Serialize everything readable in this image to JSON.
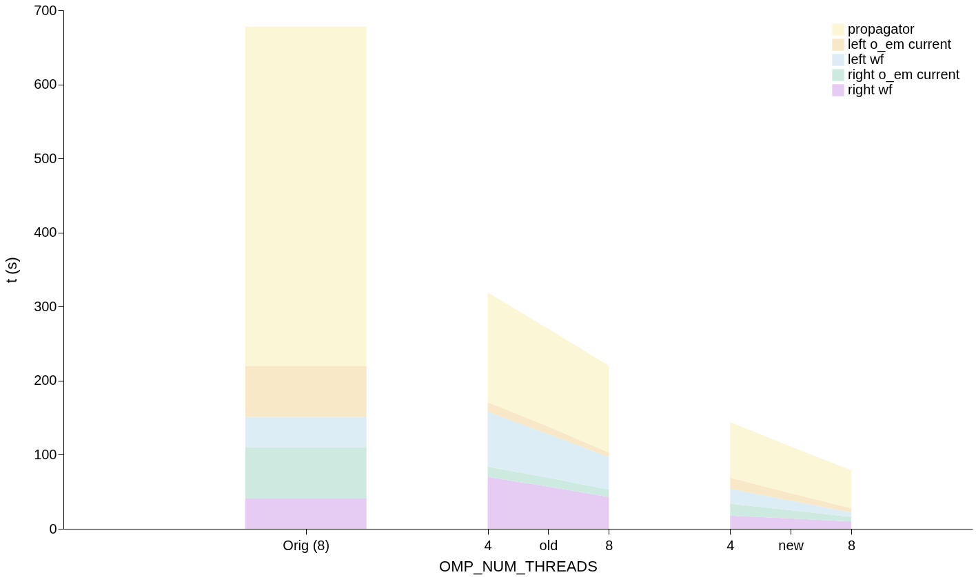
{
  "chart_data": {
    "type": "area",
    "stacked": true,
    "xlabel": "OMP_NUM_THREADS",
    "ylabel": "t (s)",
    "categories": [
      null,
      null,
      null,
      null,
      "Orig (8)",
      null,
      null,
      "4",
      "old",
      "8",
      null,
      "4",
      "new",
      "8",
      null,
      null
    ],
    "ylim": [
      0,
      700
    ],
    "yticks": [
      0,
      100,
      200,
      300,
      400,
      500,
      600,
      700
    ],
    "series": [
      {
        "name": "right wf",
        "color": "#e6cbf2",
        "values": [
          null,
          null,
          null,
          41,
          41,
          41,
          null,
          70,
          57,
          43,
          null,
          18,
          14,
          10,
          null,
          null
        ]
      },
      {
        "name": "right o_em current",
        "color": "#cdeae0",
        "values": [
          null,
          null,
          null,
          69,
          69,
          69,
          null,
          14,
          12,
          10,
          null,
          16,
          11,
          6,
          null,
          null
        ]
      },
      {
        "name": "left wf",
        "color": "#dcedf6",
        "values": [
          null,
          null,
          null,
          41,
          41,
          41,
          null,
          74,
          59,
          44,
          null,
          20,
          13,
          6,
          null,
          null
        ]
      },
      {
        "name": "left o_em current",
        "color": "#f8e8c8",
        "values": [
          null,
          null,
          null,
          69,
          69,
          69,
          null,
          13,
          10,
          6,
          null,
          15,
          10,
          6,
          null,
          null
        ]
      },
      {
        "name": "propagator",
        "color": "#faf6d6",
        "values": [
          null,
          null,
          null,
          458,
          458,
          458,
          null,
          148,
          132,
          117,
          null,
          75,
          63,
          51,
          null,
          null
        ]
      }
    ],
    "grid": false,
    "legend": "top right"
  }
}
